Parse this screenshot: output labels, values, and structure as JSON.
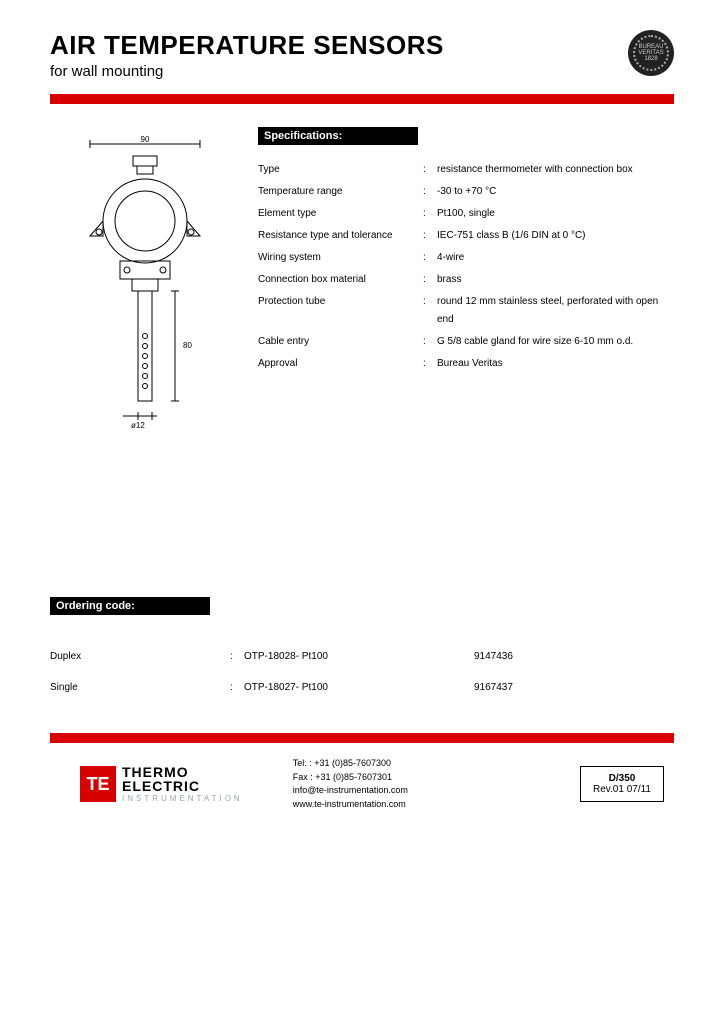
{
  "header": {
    "title": "AIR TEMPERATURE SENSORS",
    "subtitle": "for wall mounting",
    "seal_label": "BUREAU VERITAS 1828"
  },
  "colors": {
    "accent": "#d90000",
    "black": "#000000",
    "bg": "#ffffff"
  },
  "drawing": {
    "dim_top": "90",
    "dim_side": "80",
    "dim_dia": "ø12"
  },
  "specs": {
    "section_label": "Specifications:",
    "rows": [
      {
        "key": "Type",
        "val": "resistance thermometer with connection box"
      },
      {
        "key": "Temperature range",
        "val": "-30 to +70 °C"
      },
      {
        "key": "Element type",
        "val": "Pt100, single"
      },
      {
        "key": "Resistance type and tolerance",
        "val": "IEC-751 class B (1/6 DIN at 0 °C)"
      },
      {
        "key": "Wiring system",
        "val": "4-wire"
      },
      {
        "key": "Connection box material",
        "val": "brass"
      },
      {
        "key": "Protection tube",
        "val": "round 12 mm stainless steel, perforated with open end"
      },
      {
        "key": "Cable entry",
        "val": "G 5/8 cable gland for wire size 6-10 mm o.d."
      },
      {
        "key": "Approval",
        "val": "Bureau Veritas"
      }
    ]
  },
  "ordering": {
    "section_label": "Ordering code:",
    "rows": [
      {
        "c1": "Duplex",
        "c2": "OTP-18028- Pt100",
        "c3": "9147436"
      },
      {
        "c1": "Single",
        "c2": "OTP-18027- Pt100",
        "c3": "9167437"
      }
    ]
  },
  "footer": {
    "logo_mark": "TE",
    "logo_line1": "THERMO",
    "logo_line1b": "ELECTRIC",
    "logo_line2": "INSTRUMENTATION",
    "tel": "Tel. : +31 (0)85-7607300",
    "fax": "Fax : +31 (0)85-7607301",
    "email": "info@te-instrumentation.com",
    "web": "www.te-instrumentation.com",
    "doc_code": "D/350",
    "doc_rev": "Rev.01   07/11"
  }
}
